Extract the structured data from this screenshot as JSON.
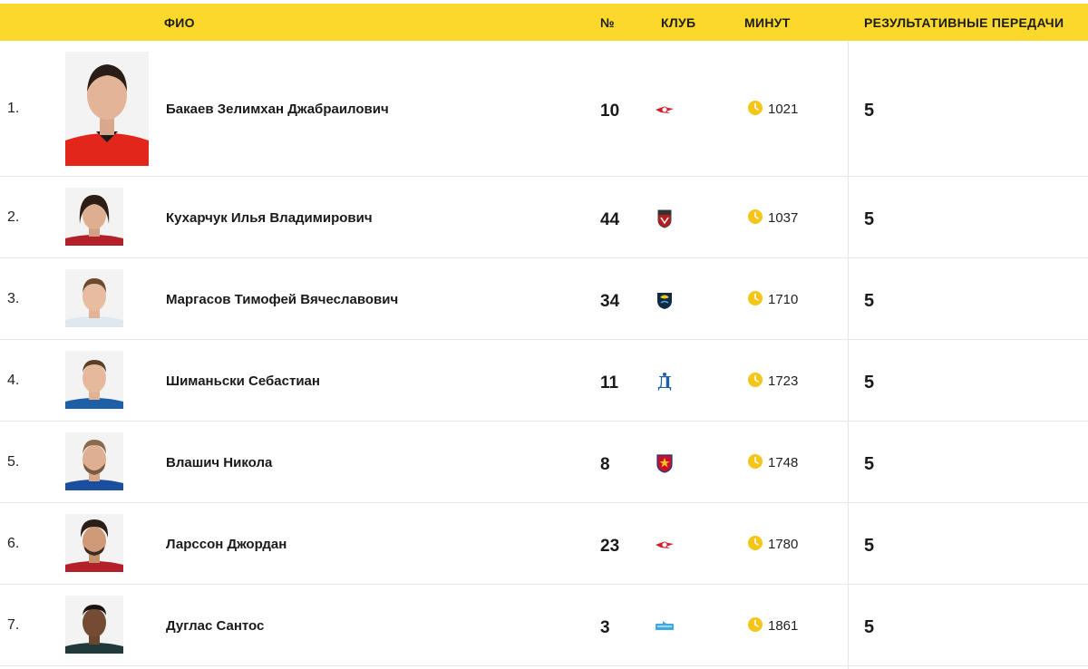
{
  "header": {
    "name_label": "ФИО",
    "number_label": "№",
    "club_label": "КЛУБ",
    "minutes_label": "МИНУТ",
    "assists_label": "РЕЗУЛЬТАТИВНЫЕ ПЕРЕДАЧИ"
  },
  "colors": {
    "header_bg": "#fbd92c",
    "clock": "#f5c518"
  },
  "players": [
    {
      "rank": "1.",
      "name": "Бакаев Зелимхан Джабраилович",
      "number": "10",
      "club_icon": "spartak-logo-icon",
      "minutes": "1021",
      "assists": "5"
    },
    {
      "rank": "2.",
      "name": "Кухарчук Илья Владимирович",
      "number": "44",
      "club_icon": "khimki-logo-icon",
      "minutes": "1037",
      "assists": "5"
    },
    {
      "rank": "3.",
      "name": "Маргасов Тимофей Вячеславович",
      "number": "34",
      "club_icon": "sochi-logo-icon",
      "minutes": "1710",
      "assists": "5"
    },
    {
      "rank": "4.",
      "name": "Шиманьски Себастиан",
      "number": "11",
      "club_icon": "dynamo-logo-icon",
      "minutes": "1723",
      "assists": "5"
    },
    {
      "rank": "5.",
      "name": "Влашич Никола",
      "number": "8",
      "club_icon": "cska-logo-icon",
      "minutes": "1748",
      "assists": "5"
    },
    {
      "rank": "6.",
      "name": "Ларссон Джордан",
      "number": "23",
      "club_icon": "spartak-logo-icon",
      "minutes": "1780",
      "assists": "5"
    },
    {
      "rank": "7.",
      "name": "Дуглас Сантос",
      "number": "3",
      "club_icon": "zenit-logo-icon",
      "minutes": "1861",
      "assists": "5"
    }
  ]
}
